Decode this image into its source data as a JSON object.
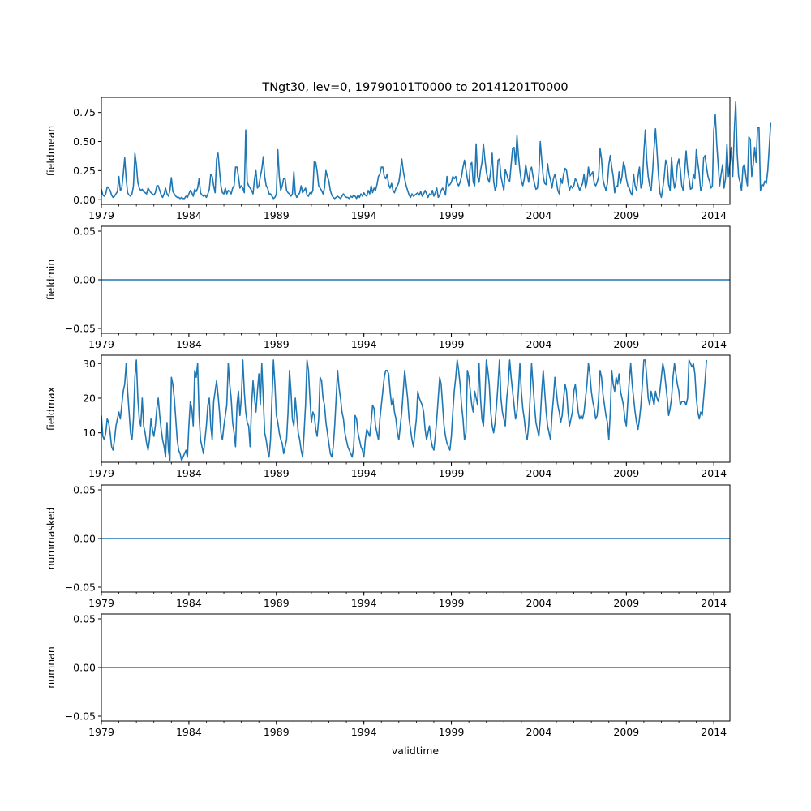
{
  "figure": {
    "title": "TNgt30, lev=0, 19790101T0000 to 20141201T0000",
    "xlabel": "validtime",
    "series_color": "#1f77b4"
  },
  "chart_data": [
    {
      "type": "line",
      "name": "fieldmean",
      "ylabel": "fieldmean",
      "xlim": [
        1979.0,
        2014.917
      ],
      "ylim": [
        -0.04,
        0.88
      ],
      "yticks": [
        "0.00",
        "0.25",
        "0.50",
        "0.75"
      ],
      "ytick_values": [
        0,
        0.25,
        0.5,
        0.75
      ],
      "xticks": [
        "1979",
        "1984",
        "1989",
        "1994",
        "1999",
        "2004",
        "2009",
        "2014"
      ],
      "xtick_values": [
        1979,
        1984,
        1989,
        1994,
        1999,
        2004,
        2009,
        2014
      ],
      "x_start": 1979.0,
      "x_step": 0.08333,
      "values": [
        0.09,
        0.04,
        0.03,
        0.05,
        0.11,
        0.1,
        0.08,
        0.04,
        0.02,
        0.03,
        0.05,
        0.07,
        0.2,
        0.08,
        0.1,
        0.22,
        0.36,
        0.18,
        0.06,
        0.04,
        0.03,
        0.05,
        0.12,
        0.4,
        0.3,
        0.15,
        0.1,
        0.08,
        0.09,
        0.07,
        0.06,
        0.05,
        0.1,
        0.08,
        0.06,
        0.05,
        0.04,
        0.06,
        0.12,
        0.12,
        0.08,
        0.04,
        0.02,
        0.05,
        0.1,
        0.05,
        0.03,
        0.08,
        0.19,
        0.07,
        0.05,
        0.03,
        0.02,
        0.02,
        0.01,
        0.02,
        0.01,
        0.01,
        0.03,
        0.02,
        0.05,
        0.08,
        0.06,
        0.03,
        0.09,
        0.07,
        0.1,
        0.18,
        0.06,
        0.04,
        0.03,
        0.04,
        0.02,
        0.05,
        0.09,
        0.22,
        0.2,
        0.12,
        0.06,
        0.35,
        0.4,
        0.25,
        0.12,
        0.06,
        0.05,
        0.1,
        0.05,
        0.08,
        0.07,
        0.05,
        0.1,
        0.12,
        0.28,
        0.28,
        0.2,
        0.1,
        0.12,
        0.1,
        0.06,
        0.6,
        0.15,
        0.12,
        0.1,
        0.08,
        0.05,
        0.18,
        0.25,
        0.1,
        0.12,
        0.2,
        0.26,
        0.37,
        0.2,
        0.12,
        0.1,
        0.05,
        0.05,
        0.03,
        0.01,
        0.02,
        0.05,
        0.43,
        0.2,
        0.08,
        0.12,
        0.18,
        0.18,
        0.08,
        0.06,
        0.05,
        0.03,
        0.05,
        0.24,
        0.05,
        0.02,
        0.04,
        0.06,
        0.12,
        0.06,
        0.08,
        0.1,
        0.04,
        0.03,
        0.06,
        0.05,
        0.08,
        0.33,
        0.32,
        0.24,
        0.12,
        0.1,
        0.08,
        0.05,
        0.1,
        0.25,
        0.2,
        0.16,
        0.08,
        0.04,
        0.02,
        0.01,
        0.02,
        0.03,
        0.02,
        0.01,
        0.03,
        0.05,
        0.03,
        0.02,
        0.02,
        0.01,
        0.03,
        0.02,
        0.04,
        0.03,
        0.01,
        0.04,
        0.02,
        0.05,
        0.03,
        0.06,
        0.04,
        0.03,
        0.08,
        0.05,
        0.12,
        0.06,
        0.1,
        0.08,
        0.13,
        0.2,
        0.22,
        0.28,
        0.28,
        0.2,
        0.18,
        0.22,
        0.13,
        0.1,
        0.14,
        0.08,
        0.06,
        0.1,
        0.12,
        0.15,
        0.24,
        0.35,
        0.25,
        0.18,
        0.12,
        0.08,
        0.04,
        0.02,
        0.05,
        0.03,
        0.04,
        0.05,
        0.06,
        0.04,
        0.07,
        0.03,
        0.05,
        0.08,
        0.05,
        0.02,
        0.05,
        0.04,
        0.08,
        0.03,
        0.06,
        0.1,
        0.02,
        0.04,
        0.08,
        0.1,
        0.08,
        0.04,
        0.2,
        0.12,
        0.13,
        0.15,
        0.2,
        0.18,
        0.2,
        0.14,
        0.12,
        0.15,
        0.2,
        0.28,
        0.34,
        0.26,
        0.18,
        0.12,
        0.3,
        0.32,
        0.15,
        0.12,
        0.48,
        0.2,
        0.15,
        0.25,
        0.32,
        0.48,
        0.35,
        0.24,
        0.18,
        0.15,
        0.25,
        0.4,
        0.16,
        0.08,
        0.12,
        0.34,
        0.35,
        0.2,
        0.14,
        0.08,
        0.26,
        0.22,
        0.17,
        0.16,
        0.3,
        0.44,
        0.45,
        0.3,
        0.55,
        0.38,
        0.25,
        0.16,
        0.12,
        0.18,
        0.3,
        0.22,
        0.15,
        0.25,
        0.28,
        0.2,
        0.14,
        0.09,
        0.1,
        0.22,
        0.5,
        0.34,
        0.2,
        0.14,
        0.13,
        0.31,
        0.22,
        0.17,
        0.1,
        0.18,
        0.22,
        0.16,
        0.08,
        0.05,
        0.18,
        0.14,
        0.22,
        0.27,
        0.25,
        0.15,
        0.08,
        0.12,
        0.1,
        0.12,
        0.18,
        0.16,
        0.12,
        0.08,
        0.11,
        0.14,
        0.22,
        0.1,
        0.15,
        0.28,
        0.2,
        0.22,
        0.24,
        0.14,
        0.12,
        0.15,
        0.2,
        0.44,
        0.35,
        0.17,
        0.12,
        0.08,
        0.14,
        0.3,
        0.38,
        0.28,
        0.2,
        0.06,
        0.12,
        0.11,
        0.24,
        0.14,
        0.2,
        0.32,
        0.28,
        0.18,
        0.12,
        0.1,
        0.06,
        0.04,
        0.22,
        0.12,
        0.08,
        0.2,
        0.28,
        0.1,
        0.14,
        0.4,
        0.6,
        0.34,
        0.2,
        0.12,
        0.08,
        0.24,
        0.44,
        0.61,
        0.42,
        0.22,
        0.06,
        0.02,
        0.1,
        0.2,
        0.34,
        0.3,
        0.13,
        0.08,
        0.36,
        0.2,
        0.1,
        0.15,
        0.3,
        0.35,
        0.26,
        0.12,
        0.08,
        0.24,
        0.42,
        0.26,
        0.18,
        0.09,
        0.1,
        0.22,
        0.18,
        0.43,
        0.32,
        0.22,
        0.08,
        0.12,
        0.36,
        0.38,
        0.28,
        0.2,
        0.16,
        0.1,
        0.12,
        0.6,
        0.73,
        0.48,
        0.3,
        0.12,
        0.22,
        0.3,
        0.1,
        0.18,
        0.48,
        0.2,
        0.3,
        0.45,
        0.2,
        0.58,
        0.84,
        0.4,
        0.2,
        0.15,
        0.08,
        0.28,
        0.3,
        0.2,
        0.12,
        0.54,
        0.52,
        0.2,
        0.3,
        0.45,
        0.32,
        0.62,
        0.62,
        0.08,
        0.13,
        0.12,
        0.16,
        0.14,
        0.25,
        0.45,
        0.66
      ]
    },
    {
      "type": "line",
      "name": "fieldmin",
      "ylabel": "fieldmin",
      "xlim": [
        1979.0,
        2014.917
      ],
      "ylim": [
        -0.055,
        0.055
      ],
      "yticks": [
        "−0.05",
        "0.00",
        "0.05"
      ],
      "ytick_values": [
        -0.05,
        0,
        0.05
      ],
      "xticks": [
        "1979",
        "1984",
        "1989",
        "1994",
        "1999",
        "2004",
        "2009",
        "2014"
      ],
      "xtick_values": [
        1979,
        1984,
        1989,
        1994,
        1999,
        2004,
        2009,
        2014
      ],
      "constant": 0.0
    },
    {
      "type": "line",
      "name": "fieldmax",
      "ylabel": "fieldmax",
      "xlim": [
        1979.0,
        2014.917
      ],
      "ylim": [
        1.5,
        32.4
      ],
      "yticks": [
        "10",
        "20",
        "30"
      ],
      "ytick_values": [
        10,
        20,
        30
      ],
      "xticks": [
        "1979",
        "1984",
        "1989",
        "1994",
        "1999",
        "2004",
        "2009",
        "2014"
      ],
      "xtick_values": [
        1979,
        1984,
        1989,
        1994,
        1999,
        2004,
        2009,
        2014
      ],
      "x_start": 1979.0,
      "x_step": 0.08333,
      "values": [
        15,
        9,
        8,
        10,
        14,
        13,
        10,
        6,
        5,
        8,
        12,
        14,
        16,
        14,
        18,
        22,
        24,
        30,
        22,
        16,
        10,
        8,
        14,
        26,
        31,
        20,
        14,
        12,
        20,
        12,
        10,
        7,
        5,
        8,
        14,
        11,
        9,
        12,
        17,
        20,
        15,
        11,
        8,
        6,
        3,
        13,
        5,
        2,
        26,
        24,
        20,
        14,
        8,
        5,
        4,
        2,
        3,
        4,
        5,
        3,
        12,
        19,
        17,
        12,
        28,
        26,
        30,
        15,
        8,
        6,
        4,
        8,
        12,
        18,
        20,
        12,
        8,
        19,
        22,
        25,
        21,
        16,
        10,
        8,
        12,
        15,
        18,
        30,
        24,
        20,
        13,
        10,
        6,
        18,
        22,
        15,
        20,
        31,
        22,
        16,
        13,
        12,
        6,
        18,
        25,
        20,
        16,
        22,
        27,
        18,
        30,
        20,
        10,
        8,
        5,
        3,
        8,
        20,
        31,
        24,
        15,
        13,
        10,
        8,
        7,
        4,
        6,
        8,
        16,
        28,
        22,
        14,
        12,
        20,
        15,
        10,
        8,
        5,
        3,
        10,
        18,
        31,
        28,
        20,
        13,
        16,
        15,
        11,
        9,
        14,
        26,
        25,
        20,
        18,
        13,
        10,
        7,
        4,
        3,
        6,
        12,
        20,
        28,
        23,
        20,
        16,
        14,
        10,
        8,
        6,
        5,
        4,
        3,
        6,
        15,
        14,
        10,
        8,
        6,
        5,
        3,
        8,
        11,
        10,
        9,
        13,
        18,
        17,
        12,
        10,
        8,
        14,
        18,
        22,
        26,
        28,
        28,
        27,
        22,
        18,
        20,
        16,
        14,
        10,
        8,
        12,
        16,
        22,
        28,
        24,
        20,
        14,
        11,
        8,
        6,
        10,
        14,
        22,
        20,
        19,
        18,
        16,
        11,
        8,
        10,
        12,
        8,
        6,
        5,
        9,
        14,
        20,
        26,
        24,
        18,
        12,
        9,
        7,
        6,
        5,
        9,
        16,
        22,
        26,
        31,
        28,
        24,
        18,
        14,
        8,
        10,
        28,
        26,
        22,
        18,
        16,
        22,
        20,
        18,
        30,
        20,
        14,
        12,
        20,
        31,
        28,
        24,
        16,
        12,
        10,
        13,
        18,
        24,
        31,
        20,
        16,
        14,
        12,
        20,
        24,
        31,
        26,
        22,
        18,
        14,
        16,
        22,
        30,
        22,
        17,
        14,
        10,
        8,
        12,
        20,
        30,
        24,
        18,
        13,
        11,
        9,
        14,
        22,
        28,
        22,
        16,
        12,
        10,
        8,
        15,
        20,
        26,
        22,
        18,
        16,
        13,
        15,
        20,
        24,
        22,
        16,
        12,
        14,
        16,
        22,
        24,
        20,
        16,
        14,
        15,
        14,
        16,
        20,
        24,
        30,
        27,
        22,
        19,
        17,
        14,
        15,
        20,
        28,
        26,
        21,
        18,
        15,
        13,
        8,
        16,
        28,
        24,
        22,
        26,
        24,
        27,
        22,
        20,
        18,
        14,
        12,
        19,
        25,
        30,
        24,
        20,
        16,
        13,
        11,
        14,
        18,
        24,
        31,
        31,
        26,
        20,
        18,
        22,
        20,
        18,
        22,
        20,
        19,
        22,
        26,
        30,
        28,
        24,
        20,
        15,
        17,
        20,
        26,
        30,
        27,
        24,
        22,
        18,
        19,
        19,
        19,
        18,
        20,
        31,
        30,
        29,
        30,
        27,
        20,
        16,
        14,
        16,
        15,
        20,
        25,
        31
      ]
    },
    {
      "type": "line",
      "name": "nummasked",
      "ylabel": "nummasked",
      "xlim": [
        1979.0,
        2014.917
      ],
      "ylim": [
        -0.055,
        0.055
      ],
      "yticks": [
        "−0.05",
        "0.00",
        "0.05"
      ],
      "ytick_values": [
        -0.05,
        0,
        0.05
      ],
      "xticks": [
        "1979",
        "1984",
        "1989",
        "1994",
        "1999",
        "2004",
        "2009",
        "2014"
      ],
      "xtick_values": [
        1979,
        1984,
        1989,
        1994,
        1999,
        2004,
        2009,
        2014
      ],
      "constant": 0.0
    },
    {
      "type": "line",
      "name": "numnan",
      "ylabel": "numnan",
      "xlim": [
        1979.0,
        2014.917
      ],
      "ylim": [
        -0.055,
        0.055
      ],
      "yticks": [
        "−0.05",
        "0.00",
        "0.05"
      ],
      "ytick_values": [
        -0.05,
        0,
        0.05
      ],
      "xticks": [
        "1979",
        "1984",
        "1989",
        "1994",
        "1999",
        "2004",
        "2009",
        "2014"
      ],
      "xtick_values": [
        1979,
        1984,
        1989,
        1994,
        1999,
        2004,
        2009,
        2014
      ],
      "constant": 0.0
    }
  ]
}
